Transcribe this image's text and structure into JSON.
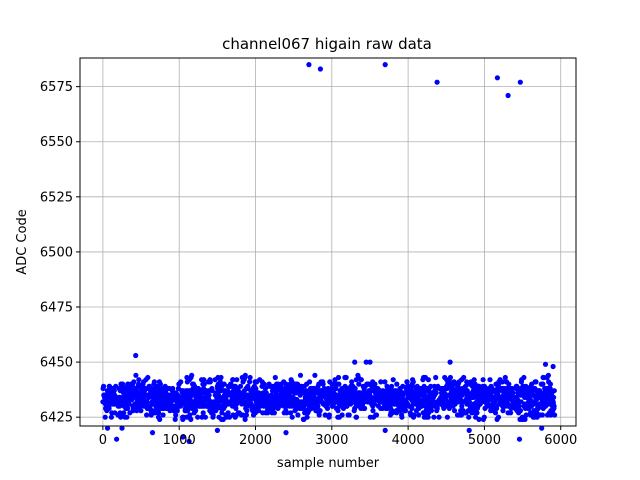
{
  "chart_data": {
    "type": "scatter",
    "title": "channel067 higain raw data",
    "xlabel": "sample number",
    "ylabel": "ADC Code",
    "xlim": [
      -300,
      6200
    ],
    "ylim": [
      6421,
      6588
    ],
    "xticks": [
      0,
      1000,
      2000,
      3000,
      4000,
      5000,
      6000
    ],
    "yticks": [
      6425,
      6450,
      6475,
      6500,
      6525,
      6550,
      6575
    ],
    "grid": true,
    "marker_color": "#0000ff",
    "sample_count": 5920,
    "band": {
      "center": 6433.5,
      "low": 6424,
      "high": 6444
    },
    "series": [
      {
        "points": [
          [
            2700,
            6585
          ],
          [
            2850,
            6583
          ],
          [
            3700,
            6585
          ],
          [
            4380,
            6577
          ],
          [
            5170,
            6579
          ],
          [
            5310,
            6571
          ],
          [
            5470,
            6577
          ],
          [
            430,
            6453
          ],
          [
            3300,
            6450
          ],
          [
            3450,
            6450
          ],
          [
            3500,
            6450
          ],
          [
            4550,
            6450
          ],
          [
            5800,
            6449
          ],
          [
            5900,
            6448
          ],
          [
            180,
            6415
          ],
          [
            1130,
            6414
          ],
          [
            5460,
            6415
          ],
          [
            250,
            6420
          ],
          [
            60,
            6420
          ],
          [
            650,
            6418
          ],
          [
            1050,
            6416
          ],
          [
            1500,
            6419
          ],
          [
            2400,
            6418
          ],
          [
            3700,
            6419
          ],
          [
            4800,
            6419
          ],
          [
            5750,
            6420
          ]
        ]
      }
    ]
  }
}
